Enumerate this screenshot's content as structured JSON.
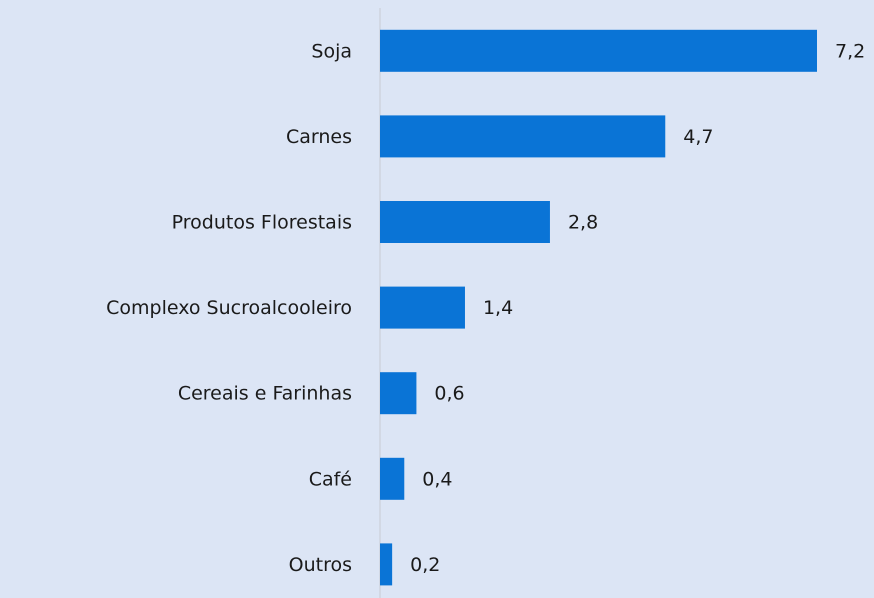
{
  "chart_data": {
    "type": "bar",
    "orientation": "horizontal",
    "categories": [
      "Soja",
      "Carnes",
      "Produtos Florestais",
      "Complexo Sucroalcooleiro",
      "Cereais e Farinhas",
      "Café",
      "Outros"
    ],
    "values": [
      7.2,
      4.7,
      2.8,
      1.4,
      0.6,
      0.4,
      0.2
    ],
    "value_labels": [
      "7,2",
      "4,7",
      "2,8",
      "1,4",
      "0,6",
      "0,4",
      "0,2"
    ],
    "color": "#0a74d6"
  }
}
